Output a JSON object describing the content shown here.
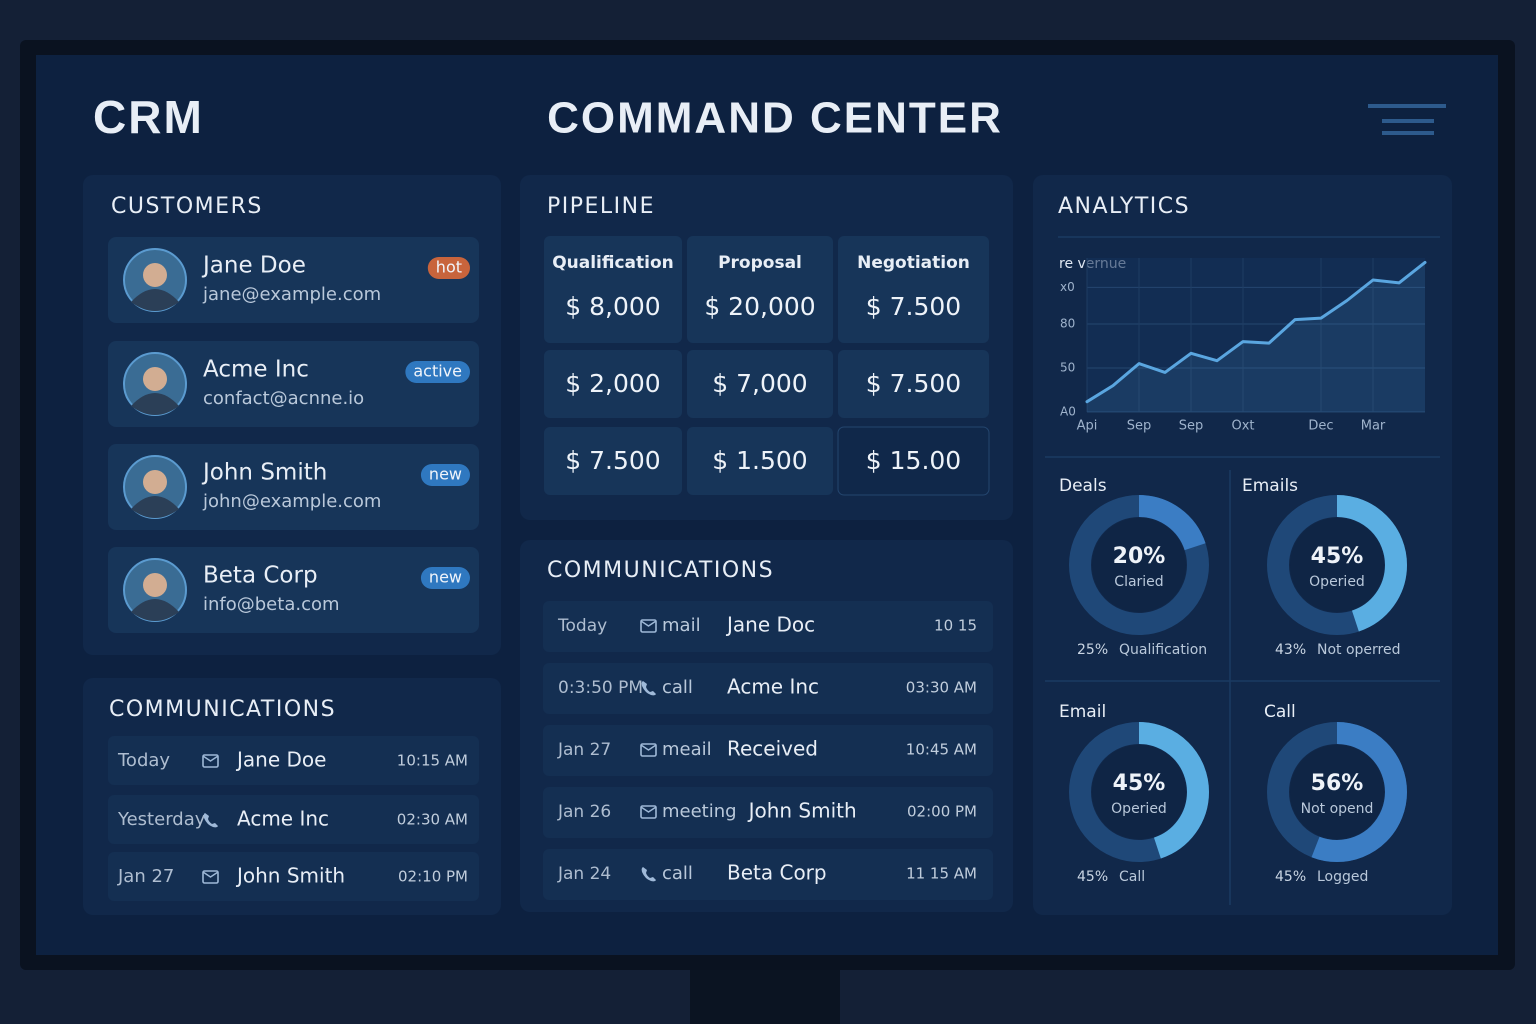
{
  "header": {
    "left_title": "CRM",
    "title": "COMMAND CENTER"
  },
  "customers": {
    "title": "CUSTOMERS",
    "items": [
      {
        "name": "Jane Doe",
        "email": "jane@example.com",
        "tag": "hot"
      },
      {
        "name": "Acme Inc",
        "email": "confact@acnne.io",
        "tag": "active"
      },
      {
        "name": "John Smith",
        "email": "john@example.com",
        "tag": "new"
      },
      {
        "name": "Beta Corp",
        "email": "info@beta.com",
        "tag": "new"
      }
    ]
  },
  "communications_left": {
    "title": "COMMUNICATIONS",
    "rows": [
      {
        "date": "Today",
        "name": "Jane Doe",
        "time": "10:15 AM"
      },
      {
        "date": "Yesterday",
        "name": "Acme Inc",
        "time": "02:30 AM"
      },
      {
        "date": "Jan 27",
        "name": "John Smith",
        "time": "02:10 PM"
      }
    ]
  },
  "pipeline": {
    "title": "PIPELINE",
    "columns": [
      "Qualification",
      "Proposal",
      "Negotiation"
    ],
    "rows": [
      [
        "$ 8,000",
        "$ 20,000",
        "$ 7.500"
      ],
      [
        "$ 2,000",
        "$ 7,000",
        "$ 7.500"
      ],
      [
        "$ 7.500",
        "$ 1.500",
        "$ 15.00"
      ]
    ]
  },
  "communications_mid": {
    "title": "COMMUNICATIONS",
    "rows": [
      {
        "date": "Today",
        "type": "mail",
        "name": "Jane Doc",
        "time": "10 15"
      },
      {
        "date": "0:3:50 PM",
        "type": "call",
        "name": "Acme Inc",
        "time": "03:30 AM"
      },
      {
        "date": "Jan 27",
        "type": "meail",
        "name": "Received",
        "time": "10:45 AM"
      },
      {
        "date": "Jan 26",
        "type": "meeting",
        "name": "John Smith",
        "time": "02:00 PM"
      },
      {
        "date": "Jan 24",
        "type": "call",
        "name": "Beta Corp",
        "time": "11 15 AM"
      }
    ]
  },
  "analytics": {
    "title": "ANALYTICS",
    "donuts": [
      {
        "title": "Deals",
        "value": 20,
        "value_label": "20%",
        "caption": "Claried",
        "legend_value": "25%",
        "legend_label": "Qualification",
        "color": "#3b7dc4"
      },
      {
        "title": "Emails",
        "value": 45,
        "value_label": "45%",
        "caption": "Operied",
        "legend_value": "43%",
        "legend_label": "Not operred",
        "color": "#5aaee2"
      },
      {
        "title": "Email",
        "value": 45,
        "value_label": "45%",
        "caption": "Operied",
        "legend_value": "45%",
        "legend_label": "Call",
        "color": "#5aaee2"
      },
      {
        "title": "Call",
        "value": 56,
        "value_label": "56%",
        "caption": "Not opend",
        "legend_value": "45%",
        "legend_label": "Logged",
        "color": "#3b7dc4"
      }
    ]
  },
  "chart_data": {
    "type": "line",
    "title": "re vernue",
    "categories": [
      "Api",
      null,
      "Sep",
      null,
      "Sep",
      null,
      "Oxt",
      null,
      null,
      "Dec",
      null,
      "Mar",
      null,
      null
    ],
    "series": [
      {
        "color": "#5aa6e0",
        "values": [
          27,
          38,
          53,
          47,
          60,
          55,
          68,
          67,
          83,
          84,
          96,
          110,
          108,
          122
        ]
      }
    ],
    "ylim": [
      20,
      125
    ],
    "yticks": [
      {
        "value": 20,
        "label": "A0"
      },
      50,
      80,
      {
        "value": 105,
        "label": "x0"
      }
    ],
    "grid": true
  }
}
